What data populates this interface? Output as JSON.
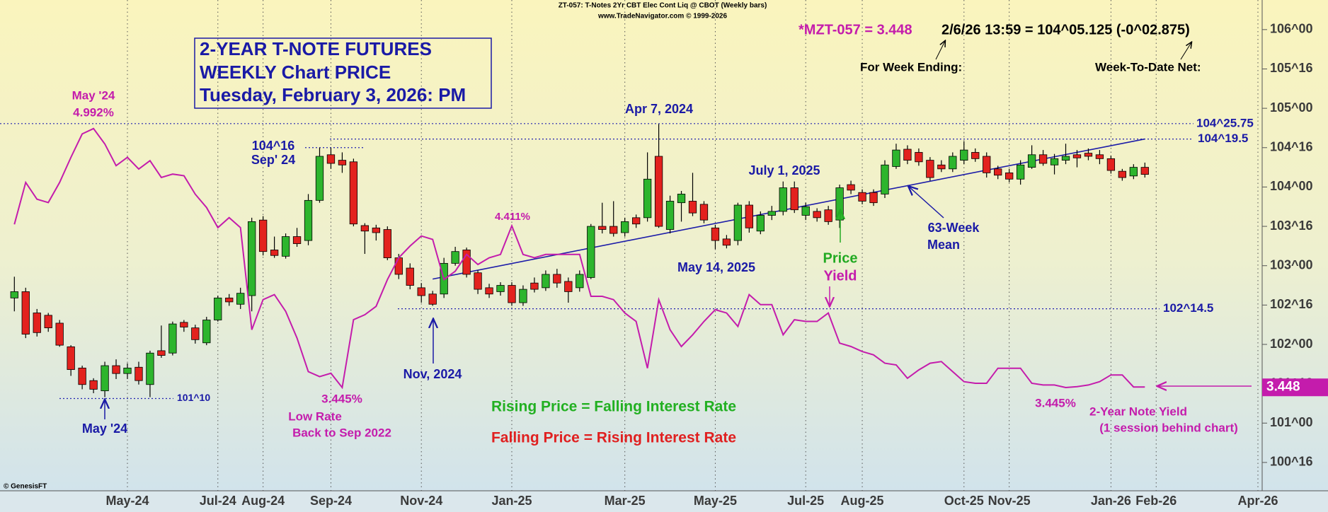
{
  "chart_data": {
    "type": "candlestick",
    "header": [
      "ZT-057:  T-Notes 2Yr CBT Elec Cont Liq @ CBOT  (Weekly bars)",
      "www.TradeNavigator.com © 1999-2026"
    ],
    "title": [
      "2-YEAR T-NOTE FUTURES",
      "WEEKLY Chart PRICE",
      "Tuesday, February 3, 2026: PM"
    ],
    "quote": {
      "symbol": "*MZT-057 = 3.448",
      "last": "2/6/26 13:59 = 104^05.125 (-0^02.875)",
      "week_ending": "For Week Ending:",
      "week_net": "Week-To-Date Net:"
    },
    "annotations": {
      "yield_peak": "May '24",
      "apr7": "Apr 7, 2024",
      "sep24": "Sep' 24",
      "jul1": "July 1, 2025",
      "may14": "May 14, 2025",
      "low_rate": [
        "Low Rate",
        "Back to Sep 2022"
      ],
      "nov24": "Nov, 2024",
      "price_low": "May '24",
      "rule_up": "Rising Price = Falling Interest Rate",
      "rule_down": "Falling Price = Rising Interest Rate",
      "yield_note": [
        "2-Year Note Yield",
        "(1 session behind chart)"
      ],
      "credit": "© GenesisFT"
    },
    "categories": [
      null,
      null,
      null,
      null,
      null,
      null,
      null,
      null,
      null,
      null,
      "May-24",
      null,
      null,
      null,
      null,
      null,
      null,
      null,
      "Jul-24",
      null,
      null,
      null,
      "Aug-24",
      null,
      null,
      null,
      null,
      null,
      "Sep-24",
      null,
      null,
      null,
      null,
      null,
      null,
      null,
      "Nov-24",
      null,
      null,
      null,
      null,
      null,
      null,
      null,
      "Jan-25",
      null,
      null,
      null,
      null,
      null,
      null,
      null,
      null,
      null,
      "Mar-25",
      null,
      null,
      null,
      null,
      null,
      null,
      null,
      "May-25",
      null,
      null,
      null,
      null,
      null,
      null,
      null,
      "Jul-25",
      null,
      null,
      null,
      null,
      "Aug-25",
      null,
      null,
      null,
      null,
      null,
      null,
      null,
      null,
      "Oct-25",
      null,
      null,
      null,
      "Nov-25",
      null,
      null,
      null,
      null,
      null,
      null,
      null,
      null,
      "Jan-26",
      null,
      null,
      null,
      "Feb-26",
      null,
      null,
      null,
      null,
      null,
      null,
      null,
      null,
      "Apr-26"
    ],
    "series": [
      {
        "name": "Price",
        "type": "candlestick",
        "up_color": "#2db52d",
        "down_color": "#e3221e",
        "open": [
          102.59,
          102.67,
          102.4,
          102.37,
          102.27,
          101.97,
          101.7,
          101.54,
          101.41,
          101.73,
          101.63,
          101.71,
          101.49,
          101.92,
          101.89,
          102.28,
          102.21,
          102.02,
          102.31,
          102.59,
          102.51,
          102.62,
          103.58,
          103.2,
          103.12,
          103.37,
          103.32,
          103.83,
          104.41,
          104.34,
          104.32,
          103.51,
          103.48,
          103.46,
          103.1,
          102.97,
          102.72,
          102.64,
          102.64,
          103.03,
          103.2,
          102.91,
          102.72,
          102.67,
          102.75,
          102.53,
          102.78,
          102.72,
          102.89,
          102.8,
          102.72,
          102.85,
          103.5,
          103.5,
          103.42,
          103.61,
          103.61,
          104.39,
          103.46,
          103.8,
          103.82,
          103.78,
          103.48,
          103.34,
          103.32,
          103.77,
          103.44,
          103.64,
          103.69,
          103.99,
          103.64,
          103.69,
          103.71,
          103.58,
          104.03,
          103.93,
          103.93,
          103.91,
          104.26,
          104.48,
          104.44,
          104.34,
          104.28,
          104.23,
          104.34,
          104.44,
          104.39,
          104.23,
          104.18,
          104.1,
          104.25,
          104.41,
          104.28,
          104.34,
          104.41,
          104.43,
          104.41,
          104.36,
          104.2,
          104.14,
          104.25,
          null,
          null,
          null,
          null,
          null,
          null,
          null,
          null,
          null,
          null
        ],
        "high": [
          102.86,
          102.72,
          102.45,
          102.4,
          102.31,
          101.99,
          101.73,
          101.57,
          101.78,
          101.81,
          101.76,
          101.78,
          101.92,
          102.24,
          102.29,
          102.31,
          102.25,
          102.35,
          102.62,
          102.64,
          102.72,
          103.61,
          103.63,
          103.37,
          103.41,
          103.48,
          103.91,
          104.5,
          104.5,
          104.44,
          104.36,
          103.54,
          103.52,
          103.5,
          103.15,
          103.03,
          102.78,
          102.68,
          103.1,
          103.24,
          103.23,
          102.94,
          102.77,
          102.79,
          102.79,
          102.75,
          102.85,
          102.94,
          102.96,
          102.85,
          102.94,
          103.53,
          103.8,
          103.82,
          103.61,
          103.65,
          104.44,
          104.8,
          103.89,
          103.95,
          104.18,
          103.82,
          103.52,
          103.39,
          103.8,
          103.82,
          103.69,
          103.76,
          104.07,
          104.07,
          103.8,
          103.73,
          103.76,
          104.03,
          104.08,
          103.97,
          103.97,
          104.34,
          104.55,
          104.53,
          104.49,
          104.38,
          104.34,
          104.44,
          104.58,
          104.49,
          104.44,
          104.27,
          104.23,
          104.34,
          104.53,
          104.47,
          104.42,
          104.55,
          104.47,
          104.49,
          104.47,
          104.4,
          104.23,
          104.29,
          104.31,
          null,
          null,
          null,
          null,
          null,
          null,
          null,
          null,
          null,
          null
        ],
        "low": [
          102.42,
          102.08,
          102.1,
          102.16,
          101.97,
          101.6,
          101.43,
          101.38,
          101.33,
          101.56,
          101.56,
          101.49,
          101.33,
          101.83,
          101.86,
          102.16,
          102.01,
          101.99,
          102.29,
          102.49,
          102.45,
          102.42,
          103.13,
          103.1,
          103.09,
          103.24,
          103.26,
          103.8,
          104.23,
          104.18,
          103.5,
          103.15,
          103.32,
          103.07,
          102.83,
          102.7,
          102.53,
          102.49,
          102.59,
          103.0,
          102.85,
          102.64,
          102.59,
          102.62,
          102.49,
          102.49,
          102.66,
          102.68,
          102.72,
          102.53,
          102.67,
          102.83,
          103.41,
          103.37,
          103.37,
          103.48,
          103.56,
          103.48,
          103.41,
          103.56,
          103.63,
          103.54,
          103.21,
          103.22,
          103.26,
          103.42,
          103.4,
          103.58,
          103.64,
          103.67,
          103.58,
          103.56,
          103.52,
          103.48,
          103.91,
          103.78,
          103.76,
          103.86,
          104.23,
          104.29,
          104.27,
          104.08,
          104.19,
          104.19,
          104.29,
          104.32,
          104.12,
          104.1,
          104.06,
          104.03,
          104.23,
          104.27,
          104.16,
          104.29,
          104.25,
          104.34,
          104.29,
          104.17,
          104.08,
          104.1,
          104.12,
          null,
          null,
          null,
          null,
          null,
          null,
          null,
          null,
          null,
          null
        ],
        "close": [
          102.67,
          102.13,
          102.15,
          102.21,
          101.99,
          101.68,
          101.49,
          101.43,
          101.73,
          101.63,
          101.7,
          101.54,
          101.89,
          101.86,
          102.26,
          102.22,
          102.06,
          102.31,
          102.59,
          102.54,
          102.65,
          103.56,
          103.18,
          103.13,
          103.37,
          103.28,
          103.83,
          104.39,
          104.3,
          104.28,
          103.53,
          103.44,
          103.42,
          103.1,
          102.89,
          102.75,
          102.62,
          102.51,
          103.03,
          103.18,
          102.89,
          102.7,
          102.64,
          102.75,
          102.53,
          102.7,
          102.7,
          102.89,
          102.78,
          102.67,
          102.89,
          103.5,
          103.46,
          103.41,
          103.56,
          103.53,
          104.1,
          103.5,
          103.82,
          103.91,
          103.67,
          103.58,
          103.32,
          103.26,
          103.77,
          103.48,
          103.64,
          103.69,
          103.99,
          103.71,
          103.75,
          103.61,
          103.56,
          103.99,
          103.96,
          103.82,
          103.8,
          104.28,
          104.47,
          104.34,
          104.32,
          104.12,
          104.23,
          104.39,
          104.47,
          104.36,
          104.18,
          104.15,
          104.1,
          104.28,
          104.41,
          104.3,
          104.36,
          104.39,
          104.37,
          104.39,
          104.36,
          104.21,
          104.12,
          104.25,
          104.16,
          null,
          null,
          null,
          null,
          null,
          null,
          null,
          null,
          null,
          null
        ]
      },
      {
        "name": "Yield",
        "type": "line",
        "axis": "y2",
        "color": "#c41cac",
        "values": [
          4.42,
          4.67,
          4.57,
          4.55,
          4.67,
          4.82,
          4.96,
          4.992,
          4.9,
          4.77,
          4.82,
          4.75,
          4.8,
          4.7,
          4.72,
          4.71,
          4.6,
          4.52,
          4.4,
          4.46,
          4.4,
          3.79,
          3.97,
          4.0,
          3.9,
          3.74,
          3.54,
          3.51,
          3.53,
          3.445,
          3.85,
          3.88,
          3.93,
          4.09,
          4.22,
          4.29,
          4.35,
          4.33,
          4.09,
          4.14,
          4.24,
          4.18,
          4.22,
          4.24,
          4.411,
          4.24,
          4.22,
          4.24,
          4.24,
          4.24,
          4.24,
          3.99,
          3.99,
          3.97,
          3.89,
          3.84,
          3.56,
          3.97,
          3.79,
          3.69,
          3.76,
          3.84,
          3.91,
          3.89,
          3.81,
          4.0,
          3.94,
          3.94,
          3.76,
          3.85,
          3.84,
          3.84,
          3.89,
          3.71,
          3.69,
          3.66,
          3.64,
          3.59,
          3.58,
          3.5,
          3.55,
          3.59,
          3.6,
          3.54,
          3.48,
          3.47,
          3.47,
          3.56,
          3.56,
          3.56,
          3.47,
          3.46,
          3.46,
          3.445,
          3.45,
          3.46,
          3.48,
          3.52,
          3.52,
          3.448,
          3.448,
          null,
          null,
          null,
          null,
          null,
          null,
          null,
          null,
          null,
          null
        ],
        "value_labels": [
          null,
          null,
          null,
          null,
          null,
          null,
          null,
          "4.992%",
          null,
          null,
          null,
          null,
          null,
          null,
          null,
          null,
          null,
          null,
          null,
          null,
          null,
          null,
          null,
          null,
          null,
          null,
          null,
          null,
          null,
          "3.445%",
          null,
          null,
          null,
          null,
          null,
          null,
          null,
          null,
          null,
          null,
          null,
          null,
          null,
          null,
          "4.411%",
          null,
          null,
          null,
          null,
          null,
          null,
          null,
          null,
          null,
          null,
          null,
          null,
          null,
          null,
          null,
          null,
          null,
          null,
          null,
          null,
          null,
          null,
          null,
          null,
          null,
          null,
          null,
          null,
          null,
          null,
          null,
          null,
          null,
          null,
          null,
          null,
          null,
          null,
          null,
          null,
          null,
          null,
          null,
          null,
          null,
          null,
          null,
          null,
          "3.445%",
          null,
          null,
          null,
          null,
          null,
          null,
          "3.448",
          null,
          null,
          null,
          null,
          null,
          null,
          null,
          null,
          null,
          null
        ]
      }
    ],
    "trend_line": {
      "label": [
        "63-Week",
        "Mean"
      ],
      "x": [
        37,
        100
      ],
      "values": [
        102.83,
        104.61
      ],
      "color": "#1c1ca8"
    },
    "levels": [
      {
        "value": 104.805,
        "label": "104^25.75"
      },
      {
        "value": 104.609,
        "label": "104^19.5"
      },
      {
        "value": 102.453,
        "label": "102^14.5"
      },
      {
        "value": 101.3125,
        "label": "101^10"
      },
      {
        "value": 104.5,
        "label": "104^16"
      }
    ],
    "ylim": [
      100.14,
      106.376
    ],
    "yticks": [
      {
        "value": 106,
        "label": "106^00"
      },
      {
        "value": 105.5,
        "label": "105^16"
      },
      {
        "value": 105,
        "label": "105^00"
      },
      {
        "value": 104.5,
        "label": "104^16"
      },
      {
        "value": 104,
        "label": "104^00"
      },
      {
        "value": 103.5,
        "label": "103^16"
      },
      {
        "value": 103,
        "label": "103^00"
      },
      {
        "value": 102.5,
        "label": "102^16"
      },
      {
        "value": 102,
        "label": "102^00"
      },
      {
        "value": 101.5,
        "label": "101^16"
      },
      {
        "value": 101,
        "label": "101^00"
      },
      {
        "value": 100.5,
        "label": "100^16"
      }
    ],
    "y2lim": [
      2.828,
      5.76
    ],
    "grid": "x"
  }
}
